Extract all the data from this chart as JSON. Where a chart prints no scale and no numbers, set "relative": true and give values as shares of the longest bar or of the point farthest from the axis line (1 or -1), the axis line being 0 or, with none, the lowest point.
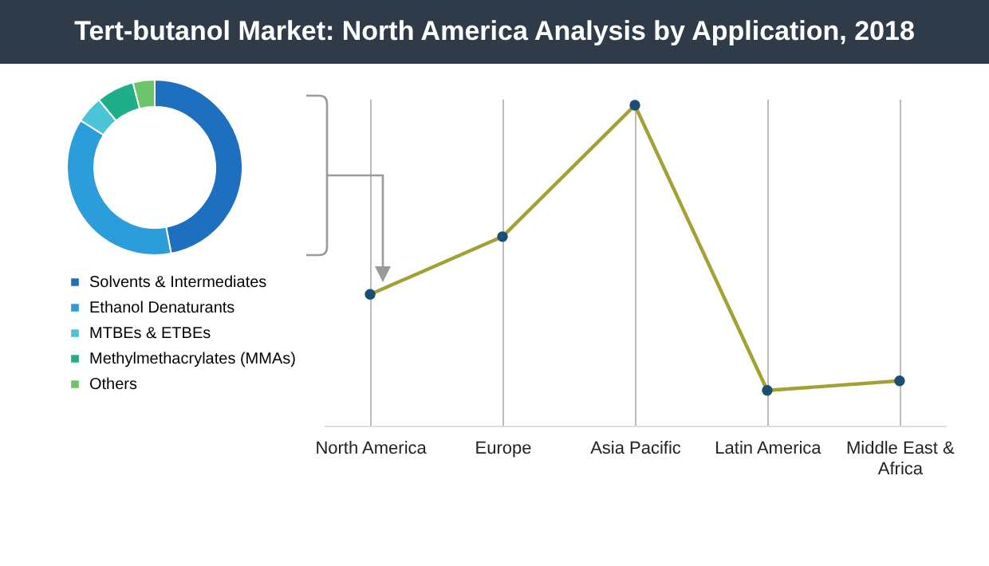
{
  "chart_data": [
    {
      "type": "donut",
      "title": "Tert-butanol Market: North America Analysis by Application, 2018",
      "categories": [
        "Solvents & Intermediates",
        "Ethanol Denaturants",
        "MTBEs & ETBEs",
        "Methylmethacrylates (MMAs)",
        "Others"
      ],
      "values": [
        47,
        37,
        5,
        7,
        4
      ],
      "colors": [
        "#1f6fbf",
        "#2b9ddb",
        "#4cc4d8",
        "#1fae8a",
        "#6cc56b"
      ],
      "legend": "bottom"
    },
    {
      "type": "line",
      "relative": true,
      "categories": [
        "North America",
        "Europe",
        "Asia Pacific",
        "Latin America",
        "Middle East & Africa"
      ],
      "series": [
        {
          "color": "#a3a133",
          "values": [
            0.41,
            0.59,
            1,
            0.11,
            0.14
          ]
        }
      ],
      "marker": "circle",
      "grid": "x"
    }
  ]
}
